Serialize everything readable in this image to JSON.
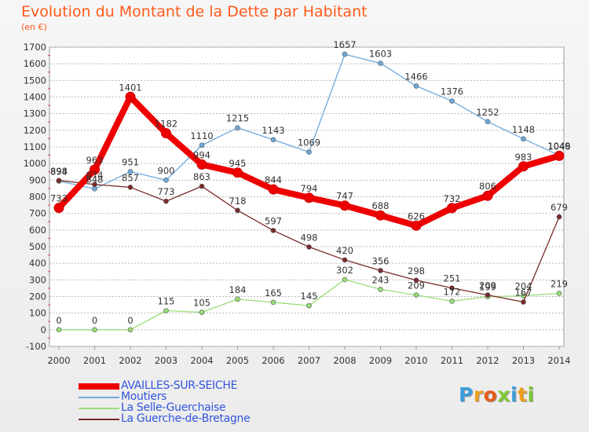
{
  "header": {
    "title": "Evolution du Montant de la Dette par Habitant",
    "unit": "(en €)"
  },
  "logo": {
    "text": "Proxiti",
    "letters": [
      "P",
      "r",
      "o",
      "x",
      "i",
      "t",
      "i"
    ],
    "colors": [
      "#3b9ede",
      "#f0a020",
      "#e85a1a",
      "#7ec832",
      "#3b9ede",
      "#f0a020",
      "#7ec832"
    ]
  },
  "chart_data": {
    "type": "line",
    "x": [
      "2000",
      "2001",
      "2002",
      "2003",
      "2004",
      "2005",
      "2006",
      "2007",
      "2008",
      "2009",
      "2010",
      "2011",
      "2012",
      "2013",
      "2014"
    ],
    "ylim": [
      -100,
      1700
    ],
    "yticks": [
      -100,
      0,
      100,
      200,
      300,
      400,
      500,
      600,
      700,
      800,
      900,
      1000,
      1100,
      1200,
      1300,
      1400,
      1500,
      1600,
      1700
    ],
    "grid": "horizontal",
    "legend_position": "bottom-left",
    "series": [
      {
        "name": "AVAILLES-SUR-SEICHE",
        "color": "#ee0000",
        "legend_color": "#3355dd",
        "values": [
          733,
          963,
          1401,
          1182,
          994,
          945,
          844,
          794,
          747,
          688,
          626,
          732,
          806,
          983,
          1046
        ]
      },
      {
        "name": "Moutiers",
        "color": "#6fa8dc",
        "legend_color": "#3355dd",
        "values": [
          894,
          848,
          951,
          900,
          1110,
          1215,
          1143,
          1069,
          1657,
          1603,
          1466,
          1376,
          1252,
          1148,
          1049
        ]
      },
      {
        "name": "La Selle-Guerchaise",
        "color": "#99dd77",
        "legend_color": "#3355dd",
        "values": [
          0,
          0,
          0,
          115,
          105,
          184,
          165,
          145,
          302,
          243,
          209,
          172,
          199,
          204,
          219
        ]
      },
      {
        "name": "La Guerche-de-Bretagne",
        "color": "#7a2a2a",
        "legend_color": "#3355dd",
        "values": [
          898,
          874,
          857,
          773,
          863,
          718,
          597,
          498,
          420,
          356,
          298,
          251,
          209,
          167,
          679
        ]
      }
    ]
  }
}
